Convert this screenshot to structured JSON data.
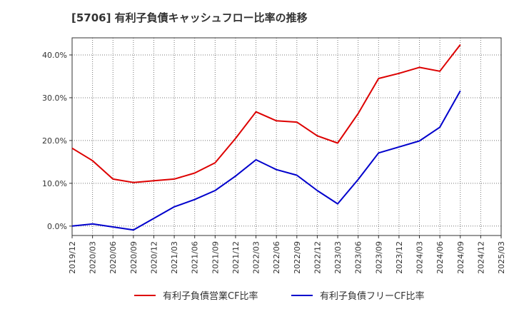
{
  "chart_data": {
    "type": "line",
    "title": "[5706]  有利子負債キャッシュフロー比率の推移",
    "x": [
      "2019/12",
      "2020/03",
      "2020/06",
      "2020/09",
      "2020/12",
      "2021/03",
      "2021/06",
      "2021/09",
      "2021/12",
      "2022/03",
      "2022/06",
      "2022/09",
      "2022/12",
      "2023/03",
      "2023/06",
      "2023/09",
      "2023/12",
      "2024/03",
      "2024/06",
      "2024/09",
      "2024/12",
      "2025/03"
    ],
    "series": [
      {
        "name": "有利子負債営業CF比率",
        "color": "#dd0000",
        "values": [
          18.2,
          15.3,
          11.0,
          10.2,
          10.6,
          11.0,
          12.4,
          14.8,
          20.5,
          26.7,
          24.6,
          24.3,
          21.1,
          19.4,
          26.3,
          34.5,
          35.7,
          37.1,
          36.2,
          42.4,
          null,
          null
        ]
      },
      {
        "name": "有利子負債フリーCF比率",
        "color": "#0000cc",
        "values": [
          0.0,
          0.5,
          -0.2,
          -0.9,
          1.8,
          4.5,
          6.2,
          8.3,
          11.7,
          15.5,
          13.2,
          11.9,
          8.3,
          5.2,
          10.9,
          17.1,
          18.5,
          19.9,
          23.1,
          31.6,
          null,
          null
        ]
      }
    ],
    "y_ticks": [
      "0.0%",
      "10.0%",
      "20.0%",
      "30.0%",
      "40.0%"
    ],
    "ylim": [
      -2.2,
      44
    ],
    "y_unit": "%",
    "grid": true,
    "legend_position": "bottom"
  }
}
